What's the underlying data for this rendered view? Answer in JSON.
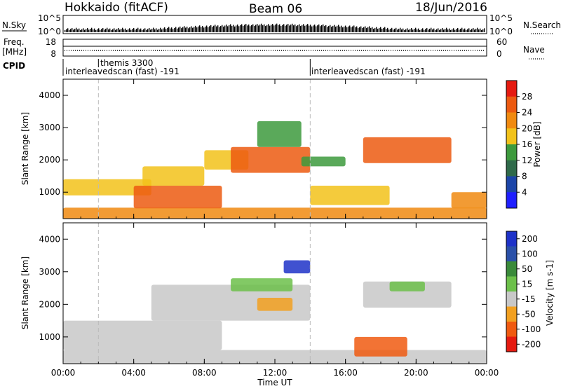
{
  "header": {
    "station": "Hokkaido (fitACF)",
    "beam": "Beam 06",
    "date": "18/Jun/2016"
  },
  "strips": {
    "nsky_label": "N.Sky",
    "nsky_ticks": [
      "10^5",
      "10^0"
    ],
    "nsearch_label": "N.Search",
    "freq_label_1": "Freq.",
    "freq_label_2": "[MHz]",
    "freq_ticks": [
      "18",
      "8"
    ],
    "nave_label": "Nave",
    "nave_ticks": [
      "60",
      "0"
    ],
    "cpid_label": "CPID",
    "cpid_segments": [
      {
        "label": "themis 3300",
        "start_hour": 2.0
      },
      {
        "label": "interleavedscan (fast) -191",
        "start_hour": 0.0
      },
      {
        "label": "interleavedscan (fast) -191",
        "start_hour": 14.0
      }
    ]
  },
  "colors": {
    "power": [
      "#1f1fff",
      "#1c45a8",
      "#2f6a4a",
      "#3d9a3d",
      "#f2c21a",
      "#f08a10",
      "#ec5a10",
      "#e51a10"
    ],
    "velocity": [
      "#e51a10",
      "#f05a10",
      "#f2a020",
      "#c8c8c8",
      "#6cc04a",
      "#3a8a3a",
      "#2a50a8",
      "#1e32c8"
    ]
  },
  "chart_data": [
    {
      "type": "heatmap",
      "title": "Power",
      "xlabel": "",
      "ylabel": "Slant Range [km]",
      "xlim": [
        0,
        24
      ],
      "ylim": [
        180,
        4500
      ],
      "xtick_hours": [
        0,
        4,
        8,
        12,
        16,
        20,
        24
      ],
      "ytick_values": [
        1000,
        2000,
        3000,
        4000
      ],
      "ytick_labels": [
        "1000",
        "2000",
        "3000",
        "4000"
      ],
      "colorbar": {
        "label": "Power [dB]",
        "tick_values": [
          4,
          8,
          12,
          16,
          20,
          24,
          28
        ],
        "range": [
          0,
          32
        ]
      },
      "regions": [
        {
          "t0": 0.0,
          "t1": 24.0,
          "r0": 180,
          "r1": 520,
          "value": 22
        },
        {
          "t0": 0.0,
          "t1": 5.0,
          "r0": 900,
          "r1": 1400,
          "value": 17
        },
        {
          "t0": 4.0,
          "t1": 9.0,
          "r0": 500,
          "r1": 1200,
          "value": 25
        },
        {
          "t0": 4.5,
          "t1": 8.0,
          "r0": 1200,
          "r1": 1800,
          "value": 18
        },
        {
          "t0": 8.0,
          "t1": 10.5,
          "r0": 1700,
          "r1": 2300,
          "value": 16
        },
        {
          "t0": 9.5,
          "t1": 14.0,
          "r0": 1600,
          "r1": 2400,
          "value": 27
        },
        {
          "t0": 11.0,
          "t1": 13.5,
          "r0": 2400,
          "r1": 3200,
          "value": 14
        },
        {
          "t0": 13.5,
          "t1": 16.0,
          "r0": 1800,
          "r1": 2100,
          "value": 12
        },
        {
          "t0": 14.0,
          "t1": 18.5,
          "r0": 600,
          "r1": 1200,
          "value": 17
        },
        {
          "t0": 17.0,
          "t1": 22.0,
          "r0": 1900,
          "r1": 2700,
          "value": 24
        },
        {
          "t0": 22.0,
          "t1": 24.0,
          "r0": 500,
          "r1": 1000,
          "value": 20
        }
      ]
    },
    {
      "type": "heatmap",
      "title": "Velocity",
      "xlabel": "Time UT",
      "ylabel": "Slant Range [km]",
      "xlim": [
        0,
        24
      ],
      "ylim": [
        180,
        4500
      ],
      "xtick_hours": [
        0,
        4,
        8,
        12,
        16,
        20,
        24
      ],
      "xtick_labels": [
        "00:00",
        "04:00",
        "08:00",
        "12:00",
        "16:00",
        "20:00",
        "00:00"
      ],
      "ytick_values": [
        1000,
        2000,
        3000,
        4000
      ],
      "ytick_labels": [
        "1000",
        "2000",
        "3000",
        "4000"
      ],
      "colorbar": {
        "label": "Velocity [m s-1]",
        "tick_values": [
          200,
          100,
          50,
          15,
          -15,
          -50,
          -100,
          -200
        ]
      },
      "regions": [
        {
          "t0": 0.0,
          "t1": 24.0,
          "r0": 180,
          "r1": 600,
          "value": 0
        },
        {
          "t0": 0.0,
          "t1": 9.0,
          "r0": 600,
          "r1": 1500,
          "value": 0
        },
        {
          "t0": 5.0,
          "t1": 14.0,
          "r0": 1500,
          "r1": 2600,
          "value": 0
        },
        {
          "t0": 11.0,
          "t1": 13.0,
          "r0": 1800,
          "r1": 2200,
          "value": -40
        },
        {
          "t0": 9.5,
          "t1": 13.0,
          "r0": 2400,
          "r1": 2800,
          "value": 40
        },
        {
          "t0": 12.5,
          "t1": 14.0,
          "r0": 2950,
          "r1": 3350,
          "value": 200
        },
        {
          "t0": 16.5,
          "t1": 19.5,
          "r0": 400,
          "r1": 1000,
          "value": -60
        },
        {
          "t0": 17.0,
          "t1": 22.0,
          "r0": 1900,
          "r1": 2700,
          "value": 0
        },
        {
          "t0": 18.5,
          "t1": 20.5,
          "r0": 2400,
          "r1": 2700,
          "value": 40
        }
      ]
    }
  ]
}
